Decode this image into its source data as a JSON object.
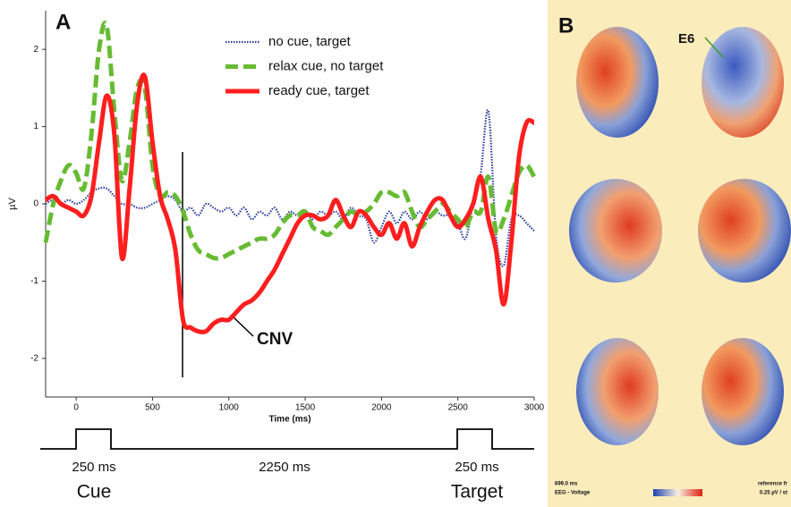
{
  "panel_a_label": "A",
  "chart_data": {
    "type": "line",
    "y_label": "µV",
    "x_label": "Time (ms)",
    "x": [
      -200,
      -150,
      -100,
      -50,
      0,
      50,
      100,
      150,
      200,
      250,
      300,
      350,
      400,
      450,
      500,
      550,
      600,
      650,
      700,
      750,
      800,
      850,
      900,
      950,
      1000,
      1050,
      1100,
      1150,
      1200,
      1250,
      1300,
      1350,
      1400,
      1450,
      1500,
      1550,
      1600,
      1650,
      1700,
      1750,
      1800,
      1850,
      1900,
      1950,
      2000,
      2050,
      2100,
      2150,
      2200,
      2250,
      2300,
      2350,
      2400,
      2450,
      2500,
      2550,
      2600,
      2650,
      2700,
      2750,
      2800,
      2850,
      2900,
      2950,
      3000
    ],
    "series": [
      {
        "name": "no cue, target",
        "color": "#2a3c9e",
        "style": "dotted",
        "values": [
          0,
          0.05,
          0,
          0.05,
          0,
          0.05,
          0.15,
          0.2,
          0.2,
          0.1,
          0,
          0,
          -0.05,
          -0.05,
          0,
          0.05,
          0.1,
          0.05,
          -0.1,
          -0.05,
          -0.15,
          0,
          -0.05,
          -0.1,
          -0.05,
          -0.15,
          -0.05,
          -0.2,
          -0.1,
          -0.15,
          -0.05,
          -0.2,
          -0.1,
          -0.15,
          -0.1,
          -0.2,
          -0.1,
          -0.15,
          -0.1,
          -0.2,
          -0.05,
          -0.15,
          -0.2,
          -0.5,
          -0.3,
          -0.1,
          -0.25,
          -0.1,
          -0.2,
          -0.1,
          -0.2,
          -0.1,
          -0.15,
          -0.15,
          -0.25,
          -0.45,
          0,
          0.4,
          1.2,
          -0.4,
          -0.8,
          -0.2,
          -0.15,
          -0.25,
          -0.35
        ]
      },
      {
        "name": "relax cue, no target",
        "color": "#66bb33",
        "style": "dashed",
        "values": [
          -0.5,
          0,
          0.3,
          0.5,
          0.4,
          0.2,
          0.9,
          2.0,
          2.3,
          1.2,
          0.3,
          0.8,
          1.5,
          1.5,
          0.5,
          0.1,
          0.15,
          0.1,
          -0.1,
          -0.4,
          -0.6,
          -0.65,
          -0.7,
          -0.7,
          -0.65,
          -0.6,
          -0.55,
          -0.5,
          -0.45,
          -0.45,
          -0.4,
          -0.25,
          -0.15,
          -0.15,
          -0.1,
          -0.3,
          -0.35,
          -0.4,
          -0.3,
          -0.2,
          -0.1,
          -0.15,
          -0.1,
          0,
          0.15,
          0.15,
          0.1,
          0.15,
          -0.1,
          -0.3,
          -0.2,
          -0.1,
          0,
          -0.1,
          -0.2,
          -0.3,
          -0.1,
          -0.1,
          0.35,
          -0.35,
          -0.2,
          0.1,
          0.4,
          0.5,
          0.35
        ]
      },
      {
        "name": "ready cue, target",
        "color": "#ff1e1e",
        "style": "solid",
        "values": [
          0.05,
          0.1,
          0,
          -0.05,
          -0.1,
          -0.15,
          0.1,
          0.8,
          1.4,
          0.9,
          -0.7,
          0.2,
          1.3,
          1.65,
          0.8,
          0.1,
          -0.2,
          -0.6,
          -1.5,
          -1.6,
          -1.65,
          -1.65,
          -1.55,
          -1.5,
          -1.5,
          -1.4,
          -1.3,
          -1.25,
          -1.15,
          -1.0,
          -0.85,
          -0.65,
          -0.45,
          -0.25,
          -0.15,
          -0.15,
          -0.2,
          -0.15,
          0.05,
          -0.15,
          -0.3,
          -0.1,
          -0.15,
          -0.3,
          -0.4,
          -0.25,
          -0.45,
          -0.25,
          -0.55,
          -0.3,
          -0.1,
          0.05,
          0.05,
          -0.15,
          -0.3,
          -0.2,
          0,
          0.35,
          -0.2,
          -0.6,
          -1.3,
          -0.5,
          0.6,
          1.05,
          1.05
        ]
      }
    ],
    "xlim": [
      -200,
      3000
    ],
    "xticks": [
      0,
      500,
      1000,
      1500,
      2000,
      2500,
      3000
    ],
    "ylim": [
      -2.5,
      2.5
    ],
    "yticks": [
      -2,
      -1,
      0,
      1,
      2
    ],
    "legend": "top",
    "annotation": "CNV"
  },
  "timing": {
    "cue_duration": "250 ms",
    "interval": "2250 ms",
    "target_duration": "250 ms",
    "cue": "Cue",
    "target": "Target"
  },
  "panel_b": {
    "label": "B",
    "electrode": "E6",
    "time": "699.0 ms",
    "measure": "EEG - Voltage",
    "reference": "reference fr",
    "scale": "0.25 µV / st"
  }
}
